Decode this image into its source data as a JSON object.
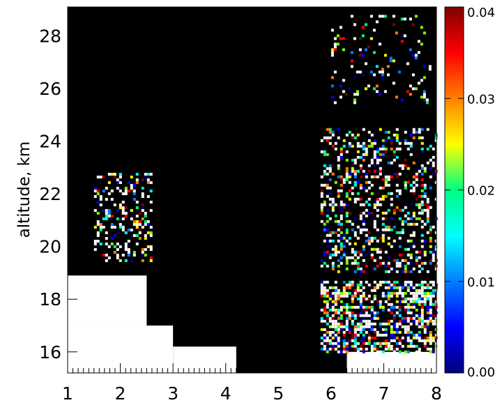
{
  "chart_data": {
    "type": "heatmap",
    "title": "",
    "xlabel": "",
    "ylabel": "altitude, km",
    "xlim": [
      1,
      8
    ],
    "ylim": [
      15.2,
      29.1
    ],
    "x_ticks": [
      "1",
      "2",
      "3",
      "4",
      "5",
      "6",
      "7",
      "8"
    ],
    "y_ticks": [
      "16",
      "18",
      "20",
      "22",
      "24",
      "26",
      "28"
    ],
    "colorbar": {
      "range": [
        0.0,
        0.04
      ],
      "ticks": [
        "0.00",
        "0.01",
        "0.02",
        "0.03",
        "0.04"
      ],
      "colormap": "rainbow (dark blue → blue → cyan → green → yellow → orange → red → dark red)",
      "above_max_color": "#ffffff",
      "below_min_color": "#000000"
    },
    "regions": [
      {
        "x": [
          1.0,
          2.5
        ],
        "y": [
          17.0,
          18.9
        ],
        "value": "above_max"
      },
      {
        "x": [
          1.0,
          3.0
        ],
        "y": [
          15.2,
          17.0
        ],
        "value": "above_max"
      },
      {
        "x": [
          3.0,
          4.2
        ],
        "y": [
          15.2,
          16.2
        ],
        "value": "above_max"
      },
      {
        "x": [
          6.3,
          8.0
        ],
        "y": [
          15.2,
          16.0
        ],
        "value": "above_max"
      },
      {
        "x": [
          5.8,
          8.0
        ],
        "y": [
          16.0,
          18.7
        ],
        "value": "mixed 0.00–0.04+"
      },
      {
        "x": [
          5.8,
          8.0
        ],
        "y": [
          19.0,
          24.5
        ],
        "value": "speckled 0.01–0.04+"
      },
      {
        "x": [
          1.5,
          2.6
        ],
        "y": [
          19.5,
          22.8
        ],
        "value": "speckled 0.01–0.04+"
      },
      {
        "x": [
          6.0,
          7.9
        ],
        "y": [
          25.5,
          28.8
        ],
        "value": "sparse speckle"
      }
    ],
    "grid": false,
    "legend": "colorbar right"
  },
  "colors": {
    "background": "#ffffff",
    "plot_background": "#000000",
    "axis": "#000000"
  }
}
